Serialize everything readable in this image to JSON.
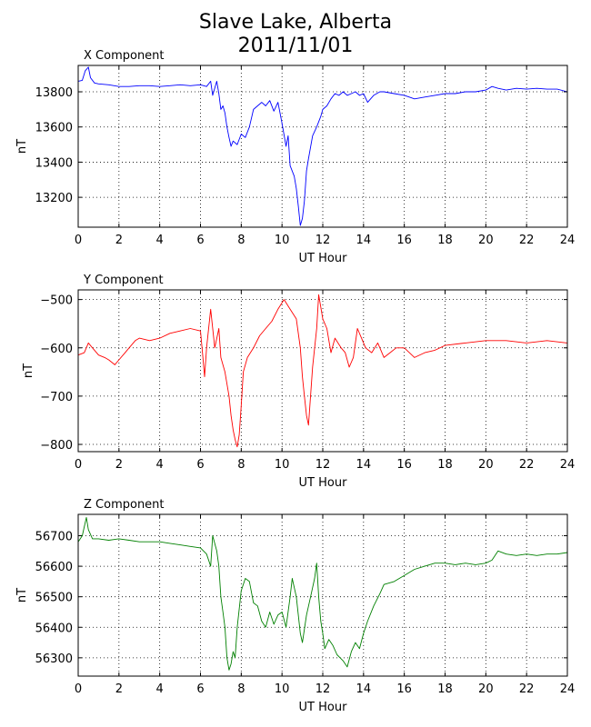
{
  "figure": {
    "title_line1": "Slave Lake, Alberta",
    "title_line2": "2011/11/01"
  },
  "chart_data": [
    {
      "type": "line",
      "title": "X Component",
      "xlabel": "UT Hour",
      "ylabel": "nT",
      "color": "#0000ff",
      "xlim": [
        0,
        24
      ],
      "ylim": [
        13030,
        13950
      ],
      "xticks": [
        0,
        2,
        4,
        6,
        8,
        10,
        12,
        14,
        16,
        18,
        20,
        22,
        24
      ],
      "yticks": [
        13200,
        13400,
        13600,
        13800
      ],
      "grid": true,
      "series": [
        {
          "x": [
            0,
            0.2,
            0.35,
            0.5,
            0.6,
            0.8,
            1.0,
            1.5,
            2,
            2.5,
            3,
            3.5,
            4,
            4.5,
            5,
            5.5,
            6,
            6.3,
            6.5,
            6.6,
            6.8,
            6.9,
            7.0,
            7.1,
            7.2,
            7.3,
            7.4,
            7.5,
            7.6,
            7.8,
            8.0,
            8.2,
            8.4,
            8.6,
            8.8,
            9.0,
            9.2,
            9.4,
            9.6,
            9.8,
            10.0,
            10.2,
            10.3,
            10.4,
            10.6,
            10.7,
            10.8,
            10.9,
            11.0,
            11.1,
            11.2,
            11.3,
            11.5,
            11.7,
            11.9,
            12.0,
            12.2,
            12.4,
            12.6,
            12.8,
            13.0,
            13.2,
            13.4,
            13.6,
            13.8,
            14.0,
            14.2,
            14.5,
            14.8,
            15.0,
            15.5,
            16.0,
            16.5,
            17,
            17.5,
            18,
            18.5,
            19,
            19.5,
            20,
            20.3,
            20.6,
            21,
            21.5,
            22,
            22.5,
            23,
            23.5,
            24
          ],
          "values": [
            13860,
            13865,
            13920,
            13940,
            13880,
            13850,
            13845,
            13840,
            13830,
            13830,
            13835,
            13835,
            13830,
            13835,
            13840,
            13835,
            13840,
            13830,
            13860,
            13780,
            13860,
            13790,
            13700,
            13720,
            13680,
            13600,
            13540,
            13490,
            13520,
            13500,
            13560,
            13540,
            13600,
            13700,
            13720,
            13740,
            13720,
            13750,
            13690,
            13740,
            13620,
            13490,
            13550,
            13380,
            13320,
            13250,
            13150,
            13040,
            13080,
            13180,
            13350,
            13420,
            13550,
            13600,
            13660,
            13700,
            13720,
            13760,
            13790,
            13780,
            13800,
            13780,
            13790,
            13800,
            13780,
            13790,
            13740,
            13780,
            13800,
            13800,
            13790,
            13780,
            13760,
            13770,
            13780,
            13790,
            13790,
            13800,
            13800,
            13810,
            13830,
            13820,
            13810,
            13820,
            13815,
            13820,
            13815,
            13815,
            13800
          ]
        }
      ]
    },
    {
      "type": "line",
      "title": "Y Component",
      "xlabel": "UT Hour",
      "ylabel": "nT",
      "color": "#ff0000",
      "xlim": [
        0,
        24
      ],
      "ylim": [
        -815,
        -480
      ],
      "xticks": [
        0,
        2,
        4,
        6,
        8,
        10,
        12,
        14,
        16,
        18,
        20,
        22,
        24
      ],
      "yticks": [
        -800,
        -700,
        -600,
        -500
      ],
      "grid": true,
      "series": [
        {
          "x": [
            0,
            0.3,
            0.5,
            0.7,
            1.0,
            1.3,
            1.5,
            1.8,
            2.0,
            2.3,
            2.5,
            2.8,
            3.0,
            3.5,
            4.0,
            4.5,
            5.0,
            5.5,
            6.0,
            6.1,
            6.2,
            6.3,
            6.5,
            6.7,
            6.9,
            7.0,
            7.2,
            7.4,
            7.5,
            7.6,
            7.7,
            7.8,
            7.9,
            8.0,
            8.1,
            8.3,
            8.6,
            8.9,
            9.2,
            9.5,
            9.8,
            10.1,
            10.4,
            10.7,
            10.9,
            11.0,
            11.1,
            11.2,
            11.3,
            11.5,
            11.7,
            11.8,
            12.0,
            12.2,
            12.4,
            12.6,
            12.9,
            13.1,
            13.3,
            13.5,
            13.7,
            13.9,
            14.1,
            14.4,
            14.7,
            15.0,
            15.3,
            15.6,
            16.0,
            16.5,
            17.0,
            17.5,
            18,
            19,
            20,
            21,
            22,
            23,
            24
          ],
          "values": [
            -615,
            -610,
            -590,
            -600,
            -615,
            -620,
            -625,
            -635,
            -625,
            -610,
            -600,
            -585,
            -580,
            -585,
            -580,
            -570,
            -565,
            -560,
            -565,
            -610,
            -660,
            -600,
            -520,
            -600,
            -560,
            -620,
            -650,
            -700,
            -740,
            -770,
            -790,
            -805,
            -780,
            -720,
            -650,
            -620,
            -600,
            -575,
            -560,
            -545,
            -520,
            -500,
            -520,
            -540,
            -600,
            -660,
            -700,
            -740,
            -760,
            -640,
            -560,
            -490,
            -540,
            -560,
            -610,
            -580,
            -600,
            -610,
            -640,
            -620,
            -560,
            -580,
            -600,
            -610,
            -590,
            -620,
            -610,
            -600,
            -600,
            -620,
            -610,
            -605,
            -595,
            -590,
            -585,
            -585,
            -590,
            -585,
            -590
          ]
        }
      ]
    },
    {
      "type": "line",
      "title": "Z Component",
      "xlabel": "UT Hour",
      "ylabel": "nT",
      "color": "#008000",
      "xlim": [
        0,
        24
      ],
      "ylim": [
        56240,
        56770
      ],
      "xticks": [
        0,
        2,
        4,
        6,
        8,
        10,
        12,
        14,
        16,
        18,
        20,
        22,
        24
      ],
      "yticks": [
        56300,
        56400,
        56500,
        56600,
        56700
      ],
      "grid": true,
      "series": [
        {
          "x": [
            0,
            0.2,
            0.4,
            0.5,
            0.7,
            1.0,
            1.5,
            2.0,
            2.5,
            3.0,
            3.5,
            4.0,
            4.5,
            5.0,
            5.5,
            6.0,
            6.3,
            6.5,
            6.6,
            6.8,
            6.9,
            7.0,
            7.1,
            7.2,
            7.3,
            7.4,
            7.5,
            7.6,
            7.7,
            7.8,
            8.0,
            8.2,
            8.4,
            8.6,
            8.8,
            9.0,
            9.2,
            9.4,
            9.6,
            9.8,
            10.0,
            10.2,
            10.4,
            10.5,
            10.7,
            10.9,
            11.0,
            11.2,
            11.4,
            11.6,
            11.7,
            11.8,
            11.9,
            12.0,
            12.1,
            12.3,
            12.5,
            12.7,
            13.0,
            13.2,
            13.4,
            13.6,
            13.8,
            14.0,
            14.2,
            14.5,
            14.8,
            15.0,
            15.5,
            16.0,
            16.5,
            17.0,
            17.5,
            18,
            18.5,
            19,
            19.5,
            20,
            20.3,
            20.6,
            21,
            21.5,
            22,
            22.5,
            23,
            23.5,
            24
          ],
          "values": [
            56680,
            56700,
            56760,
            56720,
            56690,
            56690,
            56685,
            56690,
            56685,
            56680,
            56680,
            56680,
            56675,
            56670,
            56665,
            56660,
            56640,
            56600,
            56700,
            56650,
            56600,
            56500,
            56450,
            56400,
            56300,
            56260,
            56280,
            56320,
            56300,
            56400,
            56520,
            56560,
            56550,
            56480,
            56470,
            56420,
            56400,
            56450,
            56410,
            56440,
            56450,
            56400,
            56500,
            56560,
            56500,
            56380,
            56350,
            56440,
            56500,
            56560,
            56610,
            56500,
            56420,
            56380,
            56330,
            56360,
            56340,
            56310,
            56290,
            56270,
            56320,
            56350,
            56330,
            56380,
            56420,
            56470,
            56510,
            56540,
            56550,
            56570,
            56590,
            56600,
            56610,
            56610,
            56605,
            56610,
            56605,
            56610,
            56620,
            56650,
            56640,
            56635,
            56640,
            56635,
            56640,
            56640,
            56645
          ]
        }
      ]
    }
  ]
}
